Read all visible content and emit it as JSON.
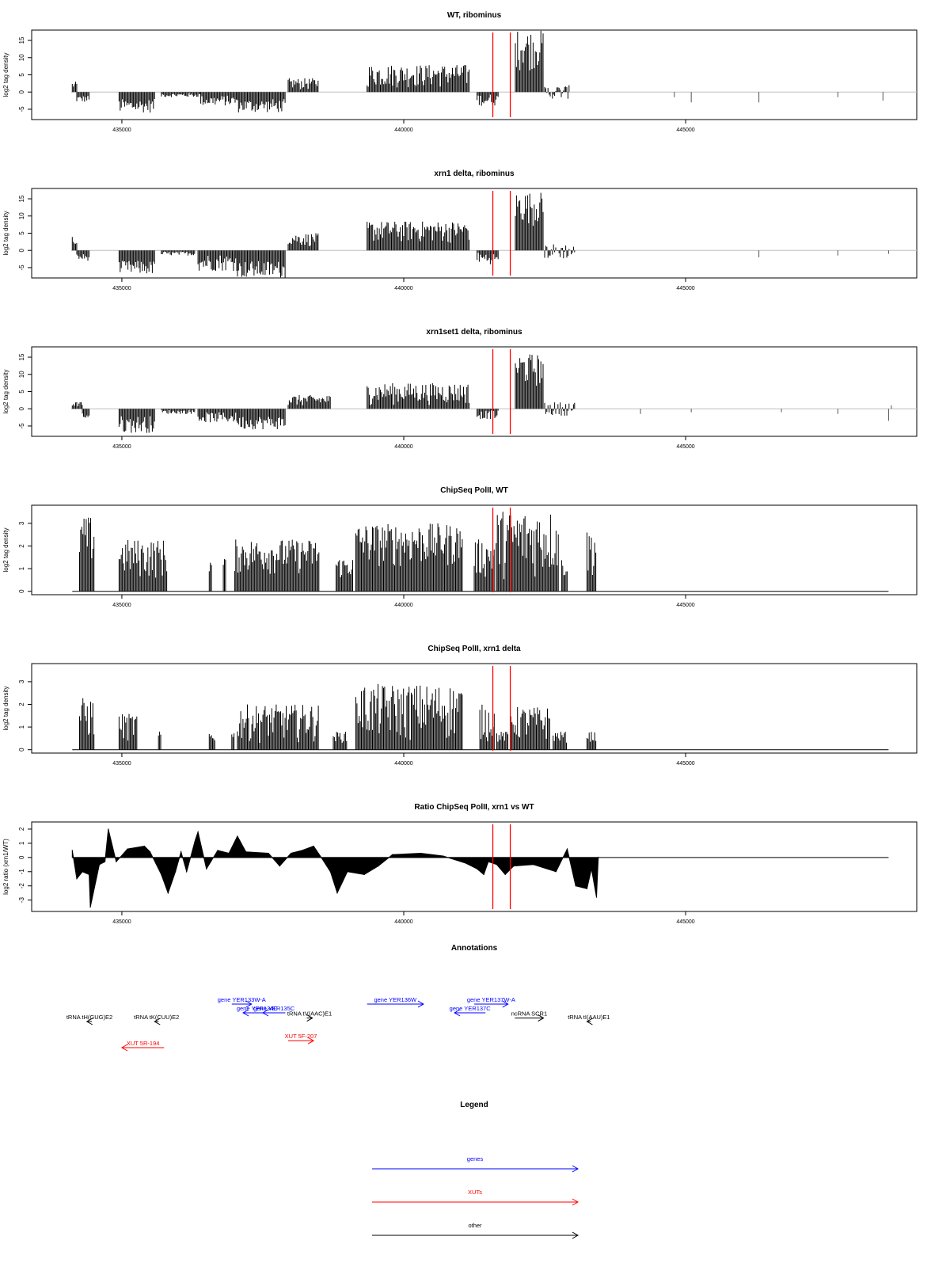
{
  "chart_data": [
    {
      "type": "bar",
      "title": "WT, ribominus",
      "ylabel": "log2 tag density",
      "xlim": [
        433400,
        449100
      ],
      "ylim": [
        -8,
        18
      ],
      "yticks": [
        -5,
        0,
        5,
        10,
        15
      ],
      "xticks": [
        435000,
        440000,
        445000
      ],
      "xtick_labels": [
        "435000",
        "440000",
        "445000"
      ],
      "markers_x": [
        441580,
        441890
      ],
      "regions": [
        {
          "from": 434120,
          "to": 434200,
          "min": 0.5,
          "max": 3,
          "sign": 1
        },
        {
          "from": 434200,
          "to": 434420,
          "min": -3,
          "max": -1,
          "sign": -1
        },
        {
          "from": 434950,
          "to": 435580,
          "min": -6,
          "max": -2,
          "sign": -1
        },
        {
          "from": 435700,
          "to": 436400,
          "min": -1.5,
          "max": -0.3,
          "sign": -1
        },
        {
          "from": 436400,
          "to": 437050,
          "min": -4,
          "max": -1,
          "sign": -1
        },
        {
          "from": 437050,
          "to": 437900,
          "min": -6,
          "max": -2,
          "sign": -1
        },
        {
          "from": 437950,
          "to": 438500,
          "min": 0.5,
          "max": 4,
          "sign": 1
        },
        {
          "from": 439350,
          "to": 441170,
          "min": 1,
          "max": 8,
          "sign": 1
        },
        {
          "from": 441300,
          "to": 441680,
          "min": -4,
          "max": -0.5,
          "sign": -1
        },
        {
          "from": 441980,
          "to": 442480,
          "min": 6,
          "max": 18,
          "sign": 1
        },
        {
          "from": 442500,
          "to": 442950,
          "min": -2,
          "max": 2,
          "sign": 1
        }
      ],
      "spikes": [
        {
          "x": 444800,
          "y": -1.5
        },
        {
          "x": 445100,
          "y": -3
        },
        {
          "x": 446300,
          "y": -3
        },
        {
          "x": 447700,
          "y": -1.5
        },
        {
          "x": 448500,
          "y": -2.5
        }
      ]
    },
    {
      "type": "bar",
      "title": "xrn1 delta, ribominus",
      "ylabel": "log2 tag density",
      "xlim": [
        433400,
        449100
      ],
      "ylim": [
        -8,
        18
      ],
      "yticks": [
        -5,
        0,
        5,
        10,
        15
      ],
      "xticks": [
        435000,
        440000,
        445000
      ],
      "xtick_labels": [
        "435000",
        "440000",
        "445000"
      ],
      "markers_x": [
        441580,
        441890
      ],
      "regions": [
        {
          "from": 434120,
          "to": 434200,
          "min": 1,
          "max": 4.5,
          "sign": 1
        },
        {
          "from": 434200,
          "to": 434420,
          "min": -3,
          "max": -1,
          "sign": -1
        },
        {
          "from": 434950,
          "to": 435580,
          "min": -7,
          "max": -3,
          "sign": -1
        },
        {
          "from": 435700,
          "to": 436300,
          "min": -1.5,
          "max": -0.3,
          "sign": -1
        },
        {
          "from": 436350,
          "to": 437050,
          "min": -6,
          "max": -1,
          "sign": -1
        },
        {
          "from": 437050,
          "to": 437900,
          "min": -8,
          "max": -3,
          "sign": -1
        },
        {
          "from": 437950,
          "to": 438500,
          "min": 1,
          "max": 5,
          "sign": 1
        },
        {
          "from": 439350,
          "to": 441170,
          "min": 2,
          "max": 8.5,
          "sign": 1
        },
        {
          "from": 441300,
          "to": 441680,
          "min": -4,
          "max": -0.5,
          "sign": -1
        },
        {
          "from": 441980,
          "to": 442480,
          "min": 7,
          "max": 17,
          "sign": 1
        },
        {
          "from": 442500,
          "to": 443050,
          "min": -2.5,
          "max": 2,
          "sign": 1
        }
      ],
      "spikes": [
        {
          "x": 446300,
          "y": -2
        },
        {
          "x": 447700,
          "y": -1.5
        },
        {
          "x": 448600,
          "y": -1
        }
      ]
    },
    {
      "type": "bar",
      "title": "xrn1set1 delta, ribominus",
      "ylabel": "log2 tag density",
      "xlim": [
        433400,
        449100
      ],
      "ylim": [
        -8,
        18
      ],
      "yticks": [
        -5,
        0,
        5,
        10,
        15
      ],
      "xticks": [
        435000,
        440000,
        445000
      ],
      "xtick_labels": [
        "435000",
        "440000",
        "445000"
      ],
      "markers_x": [
        441580,
        441890
      ],
      "regions": [
        {
          "from": 434120,
          "to": 434300,
          "min": 0.5,
          "max": 2,
          "sign": 1
        },
        {
          "from": 434300,
          "to": 434420,
          "min": -3,
          "max": -1,
          "sign": -1
        },
        {
          "from": 434950,
          "to": 435580,
          "min": -7,
          "max": -2,
          "sign": -1
        },
        {
          "from": 435700,
          "to": 436300,
          "min": -1.5,
          "max": -0.3,
          "sign": -1
        },
        {
          "from": 436350,
          "to": 437050,
          "min": -4,
          "max": -1,
          "sign": -1
        },
        {
          "from": 437050,
          "to": 437900,
          "min": -6,
          "max": -2,
          "sign": -1
        },
        {
          "from": 437950,
          "to": 438700,
          "min": 0.5,
          "max": 4,
          "sign": 1
        },
        {
          "from": 439350,
          "to": 441170,
          "min": 1,
          "max": 7.5,
          "sign": 1
        },
        {
          "from": 441300,
          "to": 441680,
          "min": -3,
          "max": -0.5,
          "sign": -1
        },
        {
          "from": 441980,
          "to": 442480,
          "min": 6,
          "max": 16,
          "sign": 1
        },
        {
          "from": 442500,
          "to": 443050,
          "min": -2,
          "max": 2,
          "sign": 1
        }
      ],
      "spikes": [
        {
          "x": 444200,
          "y": -1.5
        },
        {
          "x": 445100,
          "y": -1
        },
        {
          "x": 446700,
          "y": -1
        },
        {
          "x": 447700,
          "y": -1.5
        },
        {
          "x": 448600,
          "y": -3.5
        },
        {
          "x": 448650,
          "y": 1
        }
      ]
    },
    {
      "type": "bar",
      "title": "ChipSeq PolII, WT",
      "ylabel": "log2 tag density",
      "xlim": [
        433400,
        449100
      ],
      "ylim": [
        -0.15,
        3.8
      ],
      "yticks": [
        0,
        1,
        2,
        3
      ],
      "xticks": [
        435000,
        440000,
        445000
      ],
      "xtick_labels": [
        "435000",
        "440000",
        "445000"
      ],
      "markers_x": [
        441580,
        441890
      ],
      "baseline_range": [
        434120,
        448600
      ],
      "regions": [
        {
          "from": 434250,
          "to": 434520,
          "min": 1,
          "max": 3.3,
          "sign": 1
        },
        {
          "from": 434950,
          "to": 435800,
          "min": 0.5,
          "max": 2.3,
          "sign": 1
        },
        {
          "from": 436550,
          "to": 436600,
          "min": 0.5,
          "max": 1.5,
          "sign": 1
        },
        {
          "from": 436800,
          "to": 436850,
          "min": 0.5,
          "max": 1.5,
          "sign": 1
        },
        {
          "from": 437000,
          "to": 438500,
          "min": 0.7,
          "max": 2.3,
          "sign": 1
        },
        {
          "from": 438800,
          "to": 439100,
          "min": 0.5,
          "max": 1.5,
          "sign": 1
        },
        {
          "from": 439150,
          "to": 441050,
          "min": 1,
          "max": 3,
          "sign": 1
        },
        {
          "from": 441250,
          "to": 441620,
          "min": 0.5,
          "max": 2.3,
          "sign": 1
        },
        {
          "from": 441640,
          "to": 442750,
          "min": 0.5,
          "max": 3.6,
          "sign": 1
        },
        {
          "from": 442800,
          "to": 442900,
          "min": 0.5,
          "max": 1.5,
          "sign": 1
        },
        {
          "from": 443250,
          "to": 443420,
          "min": 0.5,
          "max": 2.8,
          "sign": 1
        }
      ],
      "spikes": []
    },
    {
      "type": "bar",
      "title": "ChipSeq PolII, xrn1 delta",
      "ylabel": "log2 tag density",
      "xlim": [
        433400,
        449100
      ],
      "ylim": [
        -0.15,
        3.8
      ],
      "yticks": [
        0,
        1,
        2,
        3
      ],
      "xticks": [
        435000,
        440000,
        445000
      ],
      "xtick_labels": [
        "435000",
        "440000",
        "445000"
      ],
      "markers_x": [
        441580,
        441890
      ],
      "baseline_range": [
        434120,
        448600
      ],
      "regions": [
        {
          "from": 434250,
          "to": 434520,
          "min": 0.3,
          "max": 2.3,
          "sign": 1
        },
        {
          "from": 434950,
          "to": 435280,
          "min": 0.3,
          "max": 1.6,
          "sign": 1
        },
        {
          "from": 435650,
          "to": 435700,
          "min": 0.3,
          "max": 0.8,
          "sign": 1
        },
        {
          "from": 436550,
          "to": 436650,
          "min": 0.3,
          "max": 0.8,
          "sign": 1
        },
        {
          "from": 436950,
          "to": 437000,
          "min": 0.3,
          "max": 0.8,
          "sign": 1
        },
        {
          "from": 437050,
          "to": 438500,
          "min": 0.3,
          "max": 2,
          "sign": 1
        },
        {
          "from": 438750,
          "to": 439000,
          "min": 0.3,
          "max": 0.8,
          "sign": 1
        },
        {
          "from": 439150,
          "to": 441050,
          "min": 0.3,
          "max": 2.9,
          "sign": 1
        },
        {
          "from": 441350,
          "to": 441620,
          "min": 0.3,
          "max": 2,
          "sign": 1
        },
        {
          "from": 441650,
          "to": 441850,
          "min": 0.3,
          "max": 0.8,
          "sign": 1
        },
        {
          "from": 441900,
          "to": 442600,
          "min": 0.3,
          "max": 1.9,
          "sign": 1
        },
        {
          "from": 442650,
          "to": 442900,
          "min": 0.3,
          "max": 0.8,
          "sign": 1
        },
        {
          "from": 443250,
          "to": 443420,
          "min": 0.3,
          "max": 0.8,
          "sign": 1
        }
      ],
      "spikes": []
    },
    {
      "type": "area",
      "title": "Ratio ChipSeq PolII, xrn1 vs WT",
      "ylabel": "log2 ratio (xrn1/WT)",
      "xlim": [
        433400,
        449100
      ],
      "ylim": [
        -3.8,
        2.5
      ],
      "yticks": [
        -3,
        -2,
        -1,
        0,
        1,
        2
      ],
      "xticks": [
        435000,
        440000,
        445000
      ],
      "xtick_labels": [
        "435000",
        "440000",
        "445000"
      ],
      "markers_x": [
        441580,
        441890
      ],
      "baseline_range": [
        434120,
        448600
      ],
      "points": [
        {
          "x": 434120,
          "y": 0.5
        },
        {
          "x": 434200,
          "y": -1.5
        },
        {
          "x": 434300,
          "y": -1
        },
        {
          "x": 434420,
          "y": -1.2
        },
        {
          "x": 434440,
          "y": -3.5
        },
        {
          "x": 434600,
          "y": -0.5
        },
        {
          "x": 434700,
          "y": -0.3
        },
        {
          "x": 434760,
          "y": 2
        },
        {
          "x": 434900,
          "y": -0.3
        },
        {
          "x": 435100,
          "y": 0.6
        },
        {
          "x": 435400,
          "y": 0.8
        },
        {
          "x": 435500,
          "y": 0.4
        },
        {
          "x": 435700,
          "y": -1.2
        },
        {
          "x": 435820,
          "y": -2.5
        },
        {
          "x": 435950,
          "y": -1
        },
        {
          "x": 436050,
          "y": 0.4
        },
        {
          "x": 436150,
          "y": -1
        },
        {
          "x": 436300,
          "y": 1.2
        },
        {
          "x": 436350,
          "y": 1.8
        },
        {
          "x": 436500,
          "y": -0.8
        },
        {
          "x": 436700,
          "y": 0.5
        },
        {
          "x": 436900,
          "y": 0.3
        },
        {
          "x": 437050,
          "y": 1.5
        },
        {
          "x": 437200,
          "y": 0.4
        },
        {
          "x": 437600,
          "y": 0.3
        },
        {
          "x": 437800,
          "y": -0.6
        },
        {
          "x": 438000,
          "y": 0.3
        },
        {
          "x": 438200,
          "y": 0.5
        },
        {
          "x": 438400,
          "y": 0.8
        },
        {
          "x": 438520,
          "y": 0.1
        },
        {
          "x": 438700,
          "y": -1
        },
        {
          "x": 438820,
          "y": -2.5
        },
        {
          "x": 439000,
          "y": -1
        },
        {
          "x": 439300,
          "y": -1.2
        },
        {
          "x": 439550,
          "y": -0.6
        },
        {
          "x": 439800,
          "y": 0.2
        },
        {
          "x": 440300,
          "y": 0.3
        },
        {
          "x": 440700,
          "y": 0.1
        },
        {
          "x": 441100,
          "y": -0.4
        },
        {
          "x": 441300,
          "y": -0.8
        },
        {
          "x": 441420,
          "y": -1.2
        },
        {
          "x": 441500,
          "y": -0.3
        },
        {
          "x": 441650,
          "y": -0.5
        },
        {
          "x": 441800,
          "y": -1.2
        },
        {
          "x": 441950,
          "y": -0.6
        },
        {
          "x": 442300,
          "y": -0.5
        },
        {
          "x": 442700,
          "y": -1
        },
        {
          "x": 442900,
          "y": 0.6
        },
        {
          "x": 443050,
          "y": -2
        },
        {
          "x": 443250,
          "y": -2.2
        },
        {
          "x": 443330,
          "y": -0.8
        },
        {
          "x": 443420,
          "y": -2.8
        },
        {
          "x": 443450,
          "y": 0
        }
      ]
    }
  ],
  "annotations": {
    "title": "Annotations",
    "items": [
      {
        "label": "gene YER133W-A",
        "kind": "gene",
        "from": 436950,
        "to": 437300,
        "row": 0
      },
      {
        "label": "gene YER134C",
        "kind": "gene",
        "from": 437650,
        "to": 437150,
        "row": 1
      },
      {
        "label": "gene YER135C",
        "kind": "gene",
        "from": 437900,
        "to": 437500,
        "row": 1
      },
      {
        "label": "gene YER136W",
        "kind": "gene",
        "from": 439350,
        "to": 440350,
        "row": 0
      },
      {
        "label": "gene YER137W-A",
        "kind": "gene",
        "from": 441250,
        "to": 441850,
        "row": 0
      },
      {
        "label": "gene YER137C",
        "kind": "gene",
        "from": 441450,
        "to": 440900,
        "row": 1
      },
      {
        "label": "tRNA tH(GUG)E2",
        "kind": "other",
        "from": 434470,
        "to": 434380,
        "row": 2
      },
      {
        "label": "tRNA tK(CUU)E2",
        "kind": "other",
        "from": 435650,
        "to": 435580,
        "row": 2
      },
      {
        "label": "tRNA tV(AAC)E1",
        "kind": "other",
        "from": 438280,
        "to": 438380,
        "row": 1.6
      },
      {
        "label": "ncRNA SCR1",
        "kind": "other",
        "from": 441970,
        "to": 442480,
        "row": 1.6
      },
      {
        "label": "tRNA tI(AAU)E1",
        "kind": "other",
        "from": 443320,
        "to": 443250,
        "row": 2
      },
      {
        "label": "XUT 5R-194",
        "kind": "xut",
        "from": 435750,
        "to": 435000,
        "row": 5
      },
      {
        "label": "XUT 5F-207",
        "kind": "xut",
        "from": 437950,
        "to": 438400,
        "row": 4.2
      }
    ]
  },
  "legend": {
    "title": "Legend",
    "entries": [
      {
        "label": "genes",
        "color": "#0000ff"
      },
      {
        "label": "XUTs",
        "color": "#ff0000"
      },
      {
        "label": "other",
        "color": "#000000"
      }
    ]
  },
  "colors": {
    "data": "#000000",
    "marker": "#ff0000",
    "gene": "#0000ff",
    "xut": "#ff0000",
    "other": "#000000",
    "baseline": "#bebebe"
  }
}
